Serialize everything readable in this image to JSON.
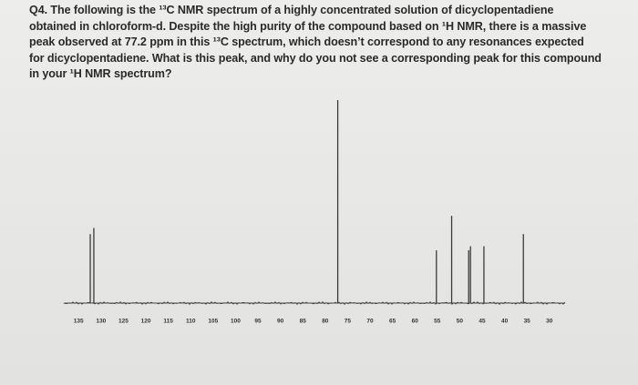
{
  "question": {
    "lines": [
      "Q4. The following is the ¹³C NMR spectrum of a highly concentrated solution of dicyclopentadiene",
      "obtained in chloroform-d. Despite the high purity of the compound based on ¹H NMR, there is a massive",
      "peak observed at 77.2 ppm in this ¹³C spectrum, which doesn’t correspond to any resonances expected",
      "for dicyclopentadiene. What is this peak, and why do you not see a corresponding peak for this compound",
      "in your ¹H NMR spectrum?"
    ]
  },
  "chart_data": {
    "type": "stem",
    "x": [
      132.4,
      131.6,
      77.2,
      55.2,
      51.8,
      48.0,
      47.6,
      44.6,
      35.8
    ],
    "values": [
      34,
      37,
      100,
      26,
      43,
      26,
      28,
      28,
      34
    ],
    "color": "#3a3a3a",
    "xlim": [
      138.3,
      26.5
    ],
    "xticks": [
      135,
      130,
      125,
      120,
      115,
      110,
      105,
      100,
      95,
      90,
      85,
      80,
      75,
      70,
      65,
      60,
      55,
      50,
      45,
      40,
      35,
      30
    ],
    "ylim": [
      0,
      100
    ]
  }
}
